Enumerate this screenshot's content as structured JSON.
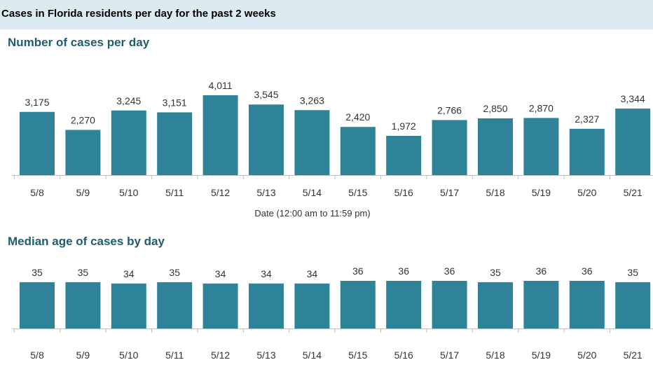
{
  "header": {
    "title": "Cases in Florida residents per day for the past 2 weeks"
  },
  "colors": {
    "bar": "#2e8399",
    "header_bg": "#dcebf2",
    "section_title": "#1e5d70"
  },
  "chart_data": [
    {
      "type": "bar",
      "title": "Number of cases per day",
      "xlabel": "Date (12:00 am to 11:59 pm)",
      "ylabel": "",
      "categories": [
        "5/8",
        "5/9",
        "5/10",
        "5/11",
        "5/12",
        "5/13",
        "5/14",
        "5/15",
        "5/16",
        "5/17",
        "5/18",
        "5/19",
        "5/20",
        "5/21"
      ],
      "values": [
        3175,
        2270,
        3245,
        3151,
        4011,
        3545,
        3263,
        2420,
        1972,
        2766,
        2850,
        2870,
        2327,
        3344
      ],
      "value_labels": [
        "3,175",
        "2,270",
        "3,245",
        "3,151",
        "4,011",
        "3,545",
        "3,263",
        "2,420",
        "1,972",
        "2,766",
        "2,850",
        "2,870",
        "2,327",
        "3,344"
      ],
      "ylim": [
        0,
        4011
      ],
      "grid": false
    },
    {
      "type": "bar",
      "title": "Median age of cases by day",
      "xlabel": "",
      "ylabel": "",
      "categories": [
        "5/8",
        "5/9",
        "5/10",
        "5/11",
        "5/12",
        "5/13",
        "5/14",
        "5/15",
        "5/16",
        "5/17",
        "5/18",
        "5/19",
        "5/20",
        "5/21"
      ],
      "values": [
        35,
        35,
        34,
        35,
        34,
        34,
        34,
        36,
        36,
        36,
        35,
        36,
        36,
        35
      ],
      "value_labels": [
        "35",
        "35",
        "34",
        "35",
        "34",
        "34",
        "34",
        "36",
        "36",
        "36",
        "35",
        "36",
        "36",
        "35"
      ],
      "ylim": [
        0,
        36
      ],
      "grid": false
    }
  ]
}
